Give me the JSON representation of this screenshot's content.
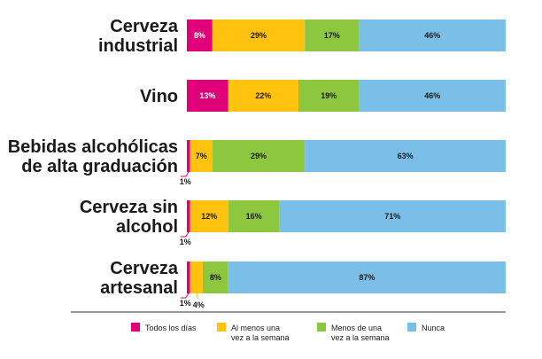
{
  "chart_data": {
    "type": "bar",
    "orientation": "horizontal",
    "stacked": true,
    "normalized_percent": true,
    "title": "",
    "xlabel": "",
    "ylabel": "",
    "xlim": [
      0,
      100
    ],
    "grid": false,
    "legend_position": "bottom",
    "categories": [
      [
        "Cerveza",
        "industrial"
      ],
      [
        "Vino"
      ],
      [
        "Bebidas alcohólicas",
        "de alta graduación"
      ],
      [
        "Cerveza sin",
        "alcohol"
      ],
      [
        "Cerveza",
        "artesanal"
      ]
    ],
    "series": [
      {
        "name": [
          "Todos los días"
        ],
        "color": "#e0007a",
        "values": [
          8,
          13,
          1,
          1,
          1
        ],
        "labels": [
          "8%",
          "13%",
          "1%",
          "1%",
          "1%"
        ]
      },
      {
        "name": [
          "Al menos una",
          "vez a la semana"
        ],
        "color": "#ffc20e",
        "values": [
          29,
          22,
          7,
          12,
          4
        ],
        "labels": [
          "29%",
          "22%",
          "7%",
          "12%",
          "4%"
        ]
      },
      {
        "name": [
          "Menos de una",
          "vez a la semana"
        ],
        "color": "#8dc63f",
        "values": [
          17,
          19,
          29,
          16,
          8
        ],
        "labels": [
          "17%",
          "19%",
          "29%",
          "16%",
          "8%"
        ]
      },
      {
        "name": [
          "Nunca"
        ],
        "color": "#79bfe8",
        "values": [
          46,
          46,
          63,
          71,
          87
        ],
        "labels": [
          "46%",
          "46%",
          "63%",
          "71%",
          "87%"
        ]
      }
    ]
  }
}
